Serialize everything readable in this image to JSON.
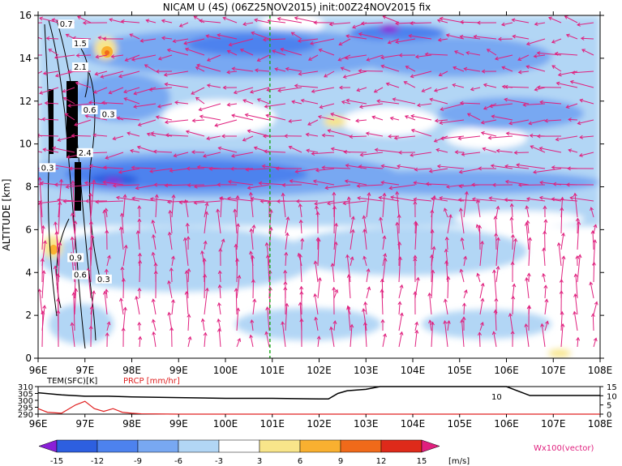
{
  "title": "NICAM U (4S) (06Z25NOV2015) init:00Z24NOV2015 fix",
  "main_panel": {
    "ylabel": "ALTITUDE [km]",
    "y_ticks": [
      0,
      2,
      4,
      6,
      8,
      10,
      12,
      14,
      16
    ],
    "x_ticks": [
      "96E",
      "97E",
      "98E",
      "99E",
      "100E",
      "101E",
      "102E",
      "103E",
      "104E",
      "105E",
      "106E",
      "107E",
      "108E"
    ],
    "contour_labels": [
      {
        "text": "0.6",
        "lon": 97.1,
        "alt": 11.5
      },
      {
        "text": "0.3",
        "lon": 97.5,
        "alt": 11.3
      },
      {
        "text": "2.4",
        "lon": 97.0,
        "alt": 9.5
      },
      {
        "text": "0.3",
        "lon": 96.2,
        "alt": 8.8
      },
      {
        "text": "0.9",
        "lon": 96.8,
        "alt": 4.6
      },
      {
        "text": "0.6",
        "lon": 96.9,
        "alt": 3.8
      },
      {
        "text": "0.3",
        "lon": 97.4,
        "alt": 3.6
      },
      {
        "text": "2.1",
        "lon": 96.9,
        "alt": 13.5
      },
      {
        "text": "1.5",
        "lon": 96.9,
        "alt": 14.6
      },
      {
        "text": "0.7",
        "lon": 96.6,
        "alt": 15.5
      }
    ],
    "marker_lon": 100.95
  },
  "bottom_panel": {
    "left_label": "TEM(SFC)[K]",
    "right_label": "PRCP [mm/hr]",
    "left_ticks": [
      "310",
      "305",
      "300",
      "295",
      "290"
    ],
    "right_ticks": [
      "15",
      "10",
      "5",
      "0"
    ],
    "annot": "10",
    "x_ticks": [
      "96E",
      "97E",
      "98E",
      "99E",
      "100E",
      "101E",
      "102E",
      "103E",
      "104E",
      "105E",
      "106E",
      "107E",
      "108E"
    ]
  },
  "colorbar": {
    "ticks": [
      "-15",
      "-12",
      "-9",
      "-6",
      "-3",
      "3",
      "6",
      "9",
      "12",
      "15"
    ],
    "unit": "[m/s]",
    "colors": [
      "#8a1fd8",
      "#2d5fe0",
      "#4d82ee",
      "#78a8f2",
      "#b2d6f5",
      "#ffffff",
      "#f8e58a",
      "#f9b030",
      "#f06a1a",
      "#de2a1a",
      "#b01010"
    ],
    "vector_label": "Wx100(vector)"
  },
  "chart_data": {
    "type": "heatmap",
    "title": "NICAM U (4S) (06Z25NOV2015) init:00Z24NOV2015 fix",
    "x_range": [
      "96E",
      "108E"
    ],
    "ylim": [
      0,
      16
    ],
    "ylabel": "ALTITUDE [km]",
    "shading_levels": [
      -15,
      -12,
      -9,
      -6,
      -3,
      3,
      6,
      9,
      12,
      15
    ],
    "unit": "m/s",
    "features": [
      {
        "name": "easterly core",
        "lon_range": [
          97.5,
          103.0
        ],
        "alt_range": [
          7.5,
          9.0
        ],
        "u": -12
      },
      {
        "name": "easterly core",
        "lon_range": [
          99.5,
          101.5
        ],
        "alt_range": [
          13.5,
          15.0
        ],
        "u": -9
      },
      {
        "name": "westerly patch",
        "lon": 97.6,
        "alt": 14.2,
        "u": 9
      },
      {
        "name": "westerly patch",
        "lon": 102.3,
        "alt": 11.4,
        "u": 3
      },
      {
        "name": "westerly patch",
        "lon": 96.3,
        "alt": 5.0,
        "u": 6
      }
    ],
    "surface_temperature": {
      "x": [
        96,
        96.5,
        97,
        97.5,
        98,
        99,
        100,
        101,
        102,
        102.2,
        102.4,
        102.6,
        103,
        103.3,
        104,
        106,
        106.5,
        108
      ],
      "values": [
        305.5,
        304,
        303,
        303,
        302.5,
        302,
        301.5,
        301.5,
        301,
        301,
        305,
        307,
        308,
        310,
        310,
        310,
        303.5,
        303.5
      ]
    },
    "precipitation": {
      "x": [
        96,
        96.2,
        96.5,
        96.8,
        97,
        97.2,
        97.4,
        97.6,
        97.8,
        98,
        98.2,
        98.5,
        99,
        108
      ],
      "values": [
        3,
        1,
        0.5,
        5,
        7,
        3,
        1.5,
        3,
        1,
        0.5,
        0.2,
        0.1,
        0,
        0
      ]
    }
  }
}
